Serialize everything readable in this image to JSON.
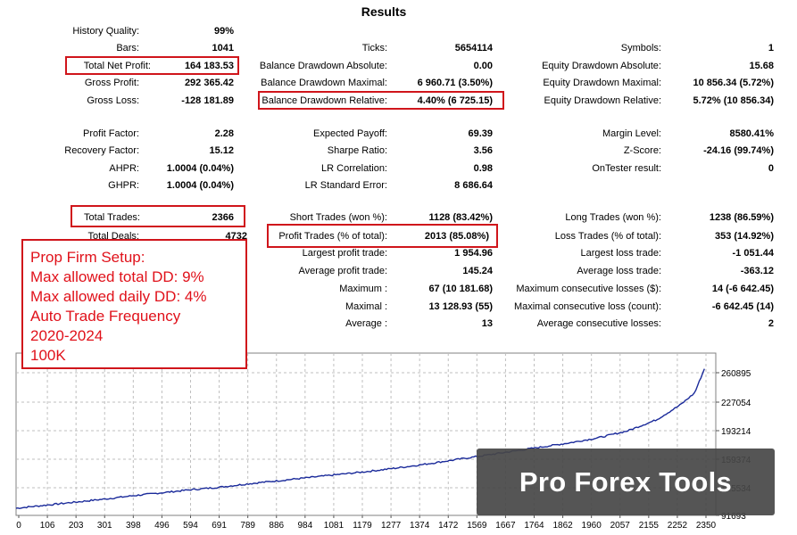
{
  "title": "Results",
  "stats": {
    "history_quality": {
      "label": "History Quality:",
      "value": "99%"
    },
    "bars": {
      "label": "Bars:",
      "value": "1041"
    },
    "total_net_profit": {
      "label": "Total Net Profit:",
      "value": "164 183.53"
    },
    "gross_profit": {
      "label": "Gross Profit:",
      "value": "292 365.42"
    },
    "gross_loss": {
      "label": "Gross Loss:",
      "value": "-128 181.89"
    },
    "ticks": {
      "label": "Ticks:",
      "value": "5654114"
    },
    "balance_dd_absolute": {
      "label": "Balance Drawdown Absolute:",
      "value": "0.00"
    },
    "balance_dd_maximal": {
      "label": "Balance Drawdown Maximal:",
      "value": "6 960.71 (3.50%)"
    },
    "balance_dd_relative": {
      "label": "Balance Drawdown Relative:",
      "value": "4.40% (6 725.15)"
    },
    "symbols": {
      "label": "Symbols:",
      "value": "1"
    },
    "equity_dd_absolute": {
      "label": "Equity Drawdown Absolute:",
      "value": "15.68"
    },
    "equity_dd_maximal": {
      "label": "Equity Drawdown Maximal:",
      "value": "10 856.34 (5.72%)"
    },
    "equity_dd_relative": {
      "label": "Equity Drawdown Relative:",
      "value": "5.72% (10 856.34)"
    },
    "profit_factor": {
      "label": "Profit Factor:",
      "value": "2.28"
    },
    "recovery_factor": {
      "label": "Recovery Factor:",
      "value": "15.12"
    },
    "ahpr": {
      "label": "AHPR:",
      "value": "1.0004 (0.04%)"
    },
    "ghpr": {
      "label": "GHPR:",
      "value": "1.0004 (0.04%)"
    },
    "expected_payoff": {
      "label": "Expected Payoff:",
      "value": "69.39"
    },
    "sharpe_ratio": {
      "label": "Sharpe Ratio:",
      "value": "3.56"
    },
    "lr_correlation": {
      "label": "LR Correlation:",
      "value": "0.98"
    },
    "lr_standard_error": {
      "label": "LR Standard Error:",
      "value": "8 686.64"
    },
    "margin_level": {
      "label": "Margin Level:",
      "value": "8580.41%"
    },
    "z_score": {
      "label": "Z-Score:",
      "value": "-24.16 (99.74%)"
    },
    "ontester_result": {
      "label": "OnTester result:",
      "value": "0"
    },
    "total_trades": {
      "label": "Total Trades:",
      "value": "2366"
    },
    "total_deals": {
      "label": "Total Deals:",
      "value": "4732"
    },
    "short_trades": {
      "label": "Short Trades (won %):",
      "value": "1128 (83.42%)"
    },
    "profit_trades": {
      "label": "Profit Trades (% of total):",
      "value": "2013 (85.08%)"
    },
    "largest_profit_trade": {
      "label": "Largest profit trade:",
      "value": "1 954.96"
    },
    "average_profit_trade": {
      "label": "Average profit trade:",
      "value": "145.24"
    },
    "max_consec_wins_label": {
      "label": "Maximum :",
      "value": "67 (10 181.68)"
    },
    "maximal_consec_profit": {
      "label": "Maximal :",
      "value": "13 128.93 (55)"
    },
    "average_consec_wins": {
      "label": "Average :",
      "value": "13"
    },
    "long_trades": {
      "label": "Long Trades (won %):",
      "value": "1238 (86.59%)"
    },
    "loss_trades": {
      "label": "Loss Trades (% of total):",
      "value": "353 (14.92%)"
    },
    "largest_loss_trade": {
      "label": "Largest loss trade:",
      "value": "-1 051.44"
    },
    "average_loss_trade": {
      "label": "Average loss trade:",
      "value": "-363.12"
    },
    "max_consec_losses": {
      "label": "Maximum consecutive losses ($):",
      "value": "14 (-6 642.45)"
    },
    "maximal_consec_loss": {
      "label": "Maximal consecutive loss (count):",
      "value": "-6 642.45 (14)"
    },
    "average_consec_losses": {
      "label": "Average consecutive losses:",
      "value": "2"
    }
  },
  "note": {
    "lines": [
      "Prop Firm Setup:",
      "Max allowed total DD: 9%",
      "Max allowed daily DD: 4%",
      "Auto Trade Frequency",
      "2020-2024",
      "100K"
    ]
  },
  "watermark": "Pro Forex Tools",
  "colors": {
    "highlight": "#d0151b",
    "note_text": "#e0111a",
    "balance_line": "#1a2a9a",
    "grid": "#bfbfbf"
  },
  "chart_data": {
    "type": "line",
    "x_ticks": [
      "0",
      "106",
      "203",
      "301",
      "398",
      "496",
      "594",
      "691",
      "789",
      "886",
      "984",
      "1081",
      "1179",
      "1277",
      "1374",
      "1472",
      "1569",
      "1667",
      "1764",
      "1862",
      "1960",
      "2057",
      "2155",
      "2252",
      "2350"
    ],
    "y_ticks": [
      "260895",
      "227054",
      "193214",
      "159374",
      "125534",
      "91693"
    ],
    "xlim": [
      0,
      2366
    ],
    "ylim": [
      91693,
      268000
    ],
    "series": [
      {
        "x": [
          0,
          100,
          200,
          300,
          400,
          500,
          600,
          700,
          800,
          900,
          1000,
          1100,
          1200,
          1300,
          1400,
          1500,
          1600,
          1700,
          1800,
          1900,
          2000,
          2100,
          2200,
          2280,
          2330,
          2366
        ],
        "y": [
          100000,
          103500,
          107000,
          110500,
          114500,
          118000,
          121500,
          124500,
          128500,
          132000,
          135500,
          139000,
          142500,
          146500,
          151000,
          156000,
          161000,
          166000,
          171000,
          176000,
          182000,
          190000,
          203000,
          220000,
          234000,
          264000
        ]
      }
    ]
  }
}
